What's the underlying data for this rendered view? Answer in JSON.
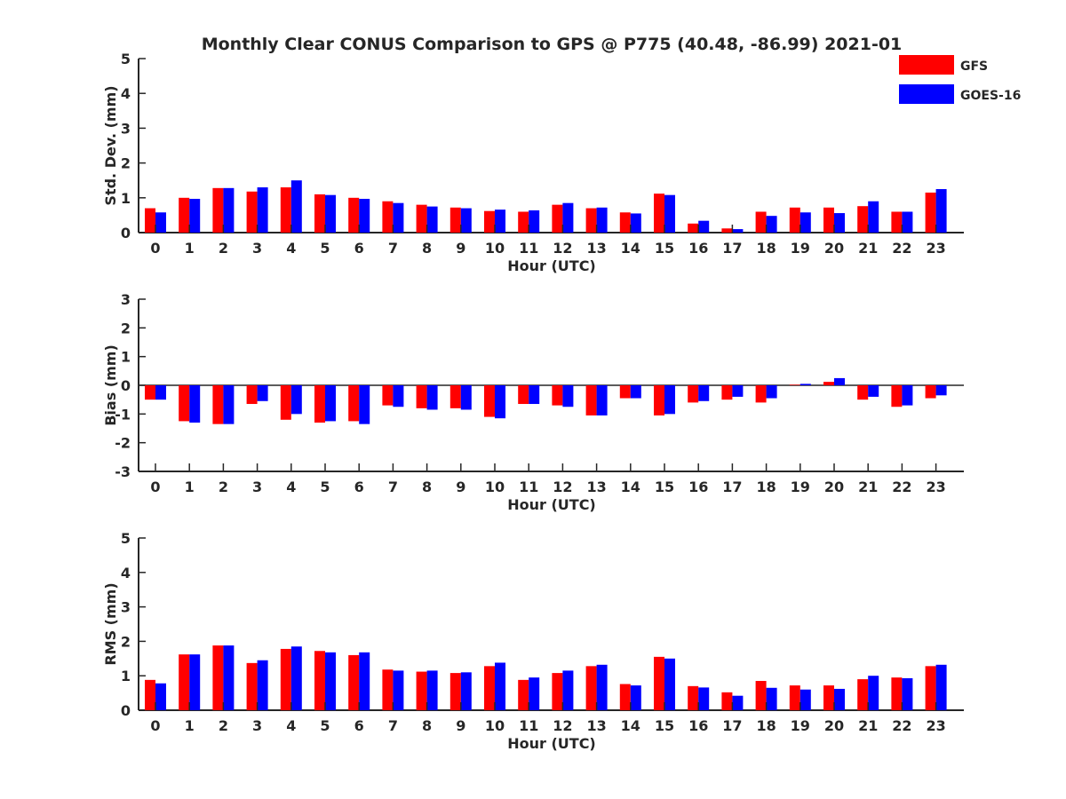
{
  "title": "Monthly Clear CONUS Comparison to GPS @ P775 (40.48, -86.99) 2021-01",
  "colors": {
    "GFS": "#ff0000",
    "GOES-16": "#0000ff",
    "axis": "#262626"
  },
  "chart_data": [
    {
      "type": "bar",
      "ylabel": "Std. Dev. (mm)",
      "xlabel": "Hour (UTC)",
      "ylim": [
        0,
        5
      ],
      "yticks": [
        0,
        1,
        2,
        3,
        4,
        5
      ],
      "categories": [
        "0",
        "1",
        "2",
        "3",
        "4",
        "5",
        "6",
        "7",
        "8",
        "9",
        "10",
        "11",
        "12",
        "13",
        "14",
        "15",
        "16",
        "17",
        "18",
        "19",
        "20",
        "21",
        "22",
        "23"
      ],
      "series": [
        {
          "name": "GFS",
          "values": [
            0.7,
            1.0,
            1.28,
            1.18,
            1.3,
            1.1,
            1.0,
            0.9,
            0.8,
            0.72,
            0.62,
            0.6,
            0.8,
            0.7,
            0.58,
            1.12,
            0.26,
            0.12,
            0.6,
            0.72,
            0.72,
            0.76,
            0.6,
            1.15
          ]
        },
        {
          "name": "GOES-16",
          "values": [
            0.58,
            0.97,
            1.28,
            1.3,
            1.5,
            1.08,
            0.97,
            0.85,
            0.75,
            0.7,
            0.66,
            0.64,
            0.85,
            0.72,
            0.55,
            1.08,
            0.34,
            0.1,
            0.48,
            0.58,
            0.56,
            0.9,
            0.6,
            1.25
          ]
        }
      ],
      "legend": "top-right"
    },
    {
      "type": "bar",
      "ylabel": "Bias (mm)",
      "xlabel": "Hour (UTC)",
      "ylim": [
        -3,
        3
      ],
      "yticks": [
        -3,
        -2,
        -1,
        0,
        1,
        2,
        3
      ],
      "categories": [
        "0",
        "1",
        "2",
        "3",
        "4",
        "5",
        "6",
        "7",
        "8",
        "9",
        "10",
        "11",
        "12",
        "13",
        "14",
        "15",
        "16",
        "17",
        "18",
        "19",
        "20",
        "21",
        "22",
        "23"
      ],
      "series": [
        {
          "name": "GFS",
          "values": [
            -0.5,
            -1.25,
            -1.35,
            -0.65,
            -1.2,
            -1.3,
            -1.25,
            -0.7,
            -0.8,
            -0.8,
            -1.1,
            -0.65,
            -0.7,
            -1.05,
            -0.45,
            -1.05,
            -0.6,
            -0.5,
            -0.6,
            0.02,
            0.12,
            -0.5,
            -0.75,
            -0.45
          ]
        },
        {
          "name": "GOES-16",
          "values": [
            -0.5,
            -1.3,
            -1.35,
            -0.55,
            -1.0,
            -1.25,
            -1.35,
            -0.75,
            -0.85,
            -0.85,
            -1.15,
            -0.65,
            -0.75,
            -1.05,
            -0.45,
            -1.0,
            -0.55,
            -0.4,
            -0.45,
            0.05,
            0.25,
            -0.4,
            -0.7,
            -0.35
          ]
        }
      ]
    },
    {
      "type": "bar",
      "ylabel": "RMS (mm)",
      "xlabel": "Hour (UTC)",
      "ylim": [
        0,
        5
      ],
      "yticks": [
        0,
        1,
        2,
        3,
        4,
        5
      ],
      "categories": [
        "0",
        "1",
        "2",
        "3",
        "4",
        "5",
        "6",
        "7",
        "8",
        "9",
        "10",
        "11",
        "12",
        "13",
        "14",
        "15",
        "16",
        "17",
        "18",
        "19",
        "20",
        "21",
        "22",
        "23"
      ],
      "series": [
        {
          "name": "GFS",
          "values": [
            0.88,
            1.62,
            1.88,
            1.37,
            1.78,
            1.72,
            1.6,
            1.18,
            1.12,
            1.08,
            1.28,
            0.88,
            1.08,
            1.28,
            0.76,
            1.55,
            0.7,
            0.52,
            0.85,
            0.72,
            0.72,
            0.9,
            0.95,
            1.28
          ]
        },
        {
          "name": "GOES-16",
          "values": [
            0.78,
            1.62,
            1.88,
            1.45,
            1.85,
            1.68,
            1.68,
            1.15,
            1.15,
            1.1,
            1.38,
            0.95,
            1.15,
            1.32,
            0.72,
            1.5,
            0.66,
            0.42,
            0.65,
            0.6,
            0.62,
            1.0,
            0.93,
            1.32
          ]
        }
      ]
    }
  ]
}
